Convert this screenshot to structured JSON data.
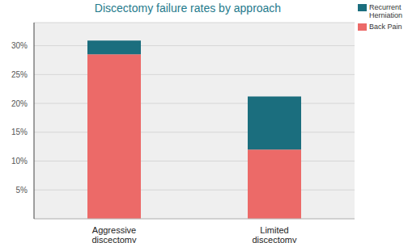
{
  "chart_data": {
    "type": "bar",
    "title": "Discectomy failure rates by approach",
    "categories": [
      "Aggressive discectomy",
      "Limited discectomy"
    ],
    "series": [
      {
        "name": "Back Pain",
        "color": "#ec6a68",
        "values": [
          28.5,
          12
        ]
      },
      {
        "name": "Recurrent Herniation",
        "color": "#1b6e7e",
        "values": [
          2.4,
          9.2
        ]
      }
    ],
    "stacked": true,
    "ylim": [
      0,
      34
    ],
    "yticks": [
      {
        "value": 5,
        "label": "5%"
      },
      {
        "value": 10,
        "label": "10%"
      },
      {
        "value": 15,
        "label": "15%"
      },
      {
        "value": 20,
        "label": "20%"
      },
      {
        "value": 25,
        "label": "25%"
      },
      {
        "value": 30,
        "label": "30%"
      }
    ],
    "grid": true,
    "legend": "upper right"
  }
}
